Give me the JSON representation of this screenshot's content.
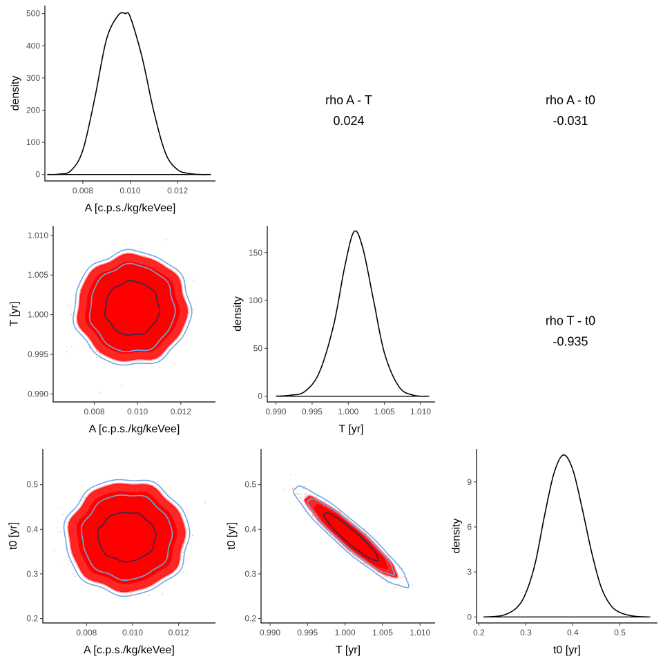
{
  "chart_data": [
    {
      "id": "p11",
      "type": "line",
      "panel": "A density",
      "xlabel": "A [c.p.s./kg/keVee]",
      "ylabel": "density",
      "xlim": [
        0.0064,
        0.0136
      ],
      "ylim": [
        -20,
        525
      ],
      "xticks": [
        0.008,
        0.01,
        0.012
      ],
      "xtick_labels": [
        "0.008",
        "0.010",
        "0.012"
      ],
      "yticks": [
        0,
        100,
        200,
        300,
        400,
        500
      ],
      "ytick_labels": [
        "0",
        "100",
        "200",
        "300",
        "400",
        "500"
      ],
      "series": [
        {
          "name": "density",
          "color": "#000000",
          "x": [
            0.0065,
            0.007,
            0.0075,
            0.008,
            0.0085,
            0.009,
            0.0095,
            0.0098,
            0.01,
            0.0105,
            0.011,
            0.0115,
            0.012,
            0.0125,
            0.013,
            0.0134
          ],
          "y": [
            0,
            1,
            12,
            75,
            235,
            420,
            495,
            500,
            490,
            365,
            195,
            65,
            15,
            3,
            0,
            0
          ]
        }
      ],
      "baseline": {
        "y": 0,
        "x": [
          0.0065,
          0.0134
        ]
      }
    },
    {
      "id": "p12",
      "type": "table",
      "panel": "correlation A - T",
      "label": "rho A - T",
      "value": "0.024"
    },
    {
      "id": "p13",
      "type": "table",
      "panel": "correlation A - t0",
      "label": "rho A - t0",
      "value": "-0.031"
    },
    {
      "id": "p21",
      "type": "scatter",
      "panel": "A vs T",
      "xlabel": "A [c.p.s./kg/keVee]",
      "ylabel": "T [yr]",
      "xlim": [
        0.0061,
        0.0136
      ],
      "ylim": [
        0.989,
        1.0112
      ],
      "xticks": [
        0.008,
        0.01,
        0.012
      ],
      "xtick_labels": [
        "0.008",
        "0.010",
        "0.012"
      ],
      "yticks": [
        0.99,
        0.995,
        1.0,
        1.005,
        1.01
      ],
      "ytick_labels": [
        "0.990",
        "0.995",
        "1.000",
        "1.005",
        "1.010"
      ],
      "mean": [
        0.00975,
        1.0008
      ],
      "sd": [
        0.00094,
        0.0025
      ],
      "rho": 0.024,
      "point_color": "#ff0000",
      "contours": [
        {
          "level": "outer",
          "color": "#6fa8e8",
          "rx": 0.0027,
          "ry": 0.0072
        },
        {
          "level": "middle",
          "color": "#6fa8e8",
          "rx": 0.00195,
          "ry": 0.0055
        },
        {
          "level": "inner",
          "color": "#2a2a50",
          "rx": 0.00125,
          "ry": 0.0034
        }
      ]
    },
    {
      "id": "p22",
      "type": "line",
      "panel": "T density",
      "xlabel": "T [yr]",
      "ylabel": "density",
      "xlim": [
        0.9888,
        1.012
      ],
      "ylim": [
        -6,
        178
      ],
      "xticks": [
        0.99,
        0.995,
        1.0,
        1.005,
        1.01
      ],
      "xtick_labels": [
        "0.990",
        "0.995",
        "1.000",
        "1.005",
        "1.010"
      ],
      "yticks": [
        0,
        50,
        100,
        150
      ],
      "ytick_labels": [
        "0",
        "50",
        "100",
        "150"
      ],
      "series": [
        {
          "name": "density",
          "color": "#000000",
          "x": [
            0.99,
            0.992,
            0.994,
            0.996,
            0.998,
            0.9995,
            1.0008,
            1.002,
            1.0035,
            1.005,
            1.007,
            1.009,
            1.011
          ],
          "y": [
            0,
            1,
            5,
            25,
            75,
            135,
            172,
            155,
            100,
            45,
            10,
            1,
            0
          ]
        }
      ],
      "baseline": {
        "y": 0,
        "x": [
          0.99,
          1.0112
        ]
      }
    },
    {
      "id": "p23",
      "type": "table",
      "panel": "correlation T - t0",
      "label": "rho T - t0",
      "value": "-0.935"
    },
    {
      "id": "p31",
      "type": "scatter",
      "panel": "A vs t0",
      "xlabel": "A [c.p.s./kg/keVee]",
      "ylabel": "t0 [yr]",
      "xlim": [
        0.0061,
        0.0136
      ],
      "ylim": [
        0.19,
        0.58
      ],
      "xticks": [
        0.008,
        0.01,
        0.012
      ],
      "xtick_labels": [
        "0.008",
        "0.010",
        "0.012"
      ],
      "yticks": [
        0.2,
        0.3,
        0.4,
        0.5
      ],
      "ytick_labels": [
        "0.2",
        "0.3",
        "0.4",
        "0.5"
      ],
      "mean": [
        0.00975,
        0.383
      ],
      "sd": [
        0.00094,
        0.037
      ],
      "rho": -0.031,
      "point_color": "#ff0000",
      "contours": [
        {
          "level": "outer",
          "color": "#6fa8e8",
          "rx": 0.0027,
          "ry": 0.13
        },
        {
          "level": "middle",
          "color": "#6fa8e8",
          "rx": 0.00195,
          "ry": 0.095
        },
        {
          "level": "inner",
          "color": "#2a2a50",
          "rx": 0.00125,
          "ry": 0.055
        }
      ]
    },
    {
      "id": "p32",
      "type": "scatter",
      "panel": "T vs t0",
      "xlabel": "T [yr]",
      "ylabel": "t0 [yr]",
      "xlim": [
        0.9888,
        1.012
      ],
      "ylim": [
        0.19,
        0.58
      ],
      "xticks": [
        0.99,
        0.995,
        1.0,
        1.005,
        1.01
      ],
      "xtick_labels": [
        "0.990",
        "0.995",
        "1.000",
        "1.005",
        "1.010"
      ],
      "yticks": [
        0.2,
        0.3,
        0.4,
        0.5
      ],
      "ytick_labels": [
        "0.2",
        "0.3",
        "0.4",
        "0.5"
      ],
      "mean": [
        1.0008,
        0.383
      ],
      "sd": [
        0.0025,
        0.037
      ],
      "rho": -0.935,
      "point_color": "#ff0000",
      "contours": [
        {
          "level": "outer",
          "color": "#6fa8e8",
          "k": 3.05
        },
        {
          "level": "middle",
          "color": "#6fa8e8",
          "k": 2.3
        },
        {
          "level": "inner",
          "color": "#2a2a50",
          "k": 1.45
        }
      ]
    },
    {
      "id": "p33",
      "type": "line",
      "panel": "t0 density",
      "xlabel": "t0 [yr]",
      "ylabel": "density",
      "xlim": [
        0.195,
        0.58
      ],
      "ylim": [
        -0.4,
        11.2
      ],
      "xticks": [
        0.2,
        0.3,
        0.4,
        0.5
      ],
      "xtick_labels": [
        "0.2",
        "0.3",
        "0.4",
        "0.5"
      ],
      "yticks": [
        0,
        3,
        6,
        9
      ],
      "ytick_labels": [
        "0",
        "3",
        "6",
        "9"
      ],
      "series": [
        {
          "name": "density",
          "color": "#000000",
          "x": [
            0.21,
            0.25,
            0.28,
            0.3,
            0.32,
            0.34,
            0.36,
            0.38,
            0.4,
            0.42,
            0.44,
            0.46,
            0.48,
            0.5,
            0.53,
            0.56
          ],
          "y": [
            0,
            0.1,
            0.6,
            1.6,
            3.6,
            6.8,
            9.6,
            10.8,
            9.8,
            7.2,
            4.3,
            2.0,
            0.8,
            0.3,
            0.05,
            0
          ]
        }
      ],
      "baseline": {
        "y": 0,
        "x": [
          0.21,
          0.565
        ]
      }
    }
  ]
}
